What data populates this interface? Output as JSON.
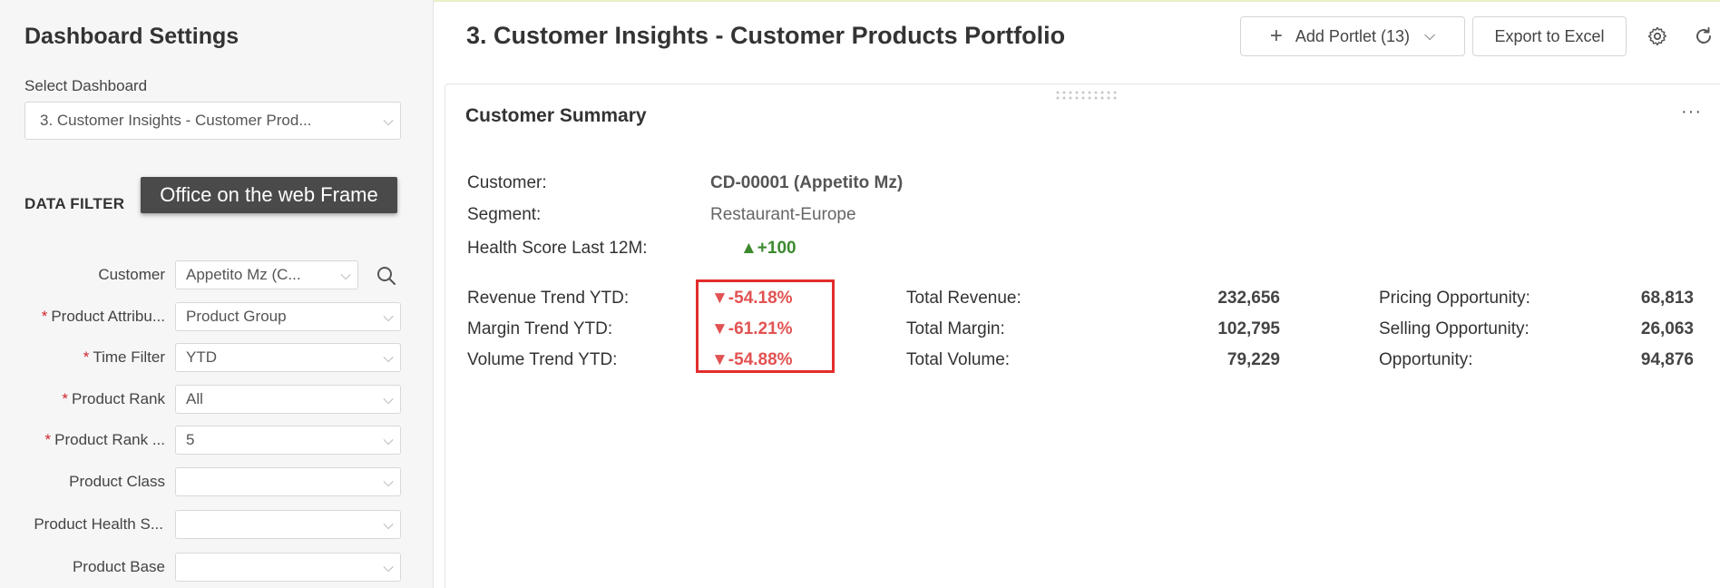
{
  "sidebar": {
    "title": "Dashboard Settings",
    "select_label": "Select Dashboard",
    "dashboard_value": "3. Customer Insights - Customer Prod...",
    "data_filter_label": "DATA FILTER",
    "tooltip": "Office on the web Frame",
    "filters": [
      {
        "label": "Customer",
        "required": false,
        "value": "Appetito Mz (C..."
      },
      {
        "label": "Product Attribu...",
        "required": true,
        "value": "Product Group"
      },
      {
        "label": "Time Filter",
        "required": true,
        "value": "YTD"
      },
      {
        "label": "Product Rank",
        "required": true,
        "value": "All"
      },
      {
        "label": "Product Rank ...",
        "required": true,
        "value": "5"
      },
      {
        "label": "Product Class",
        "required": false,
        "value": ""
      },
      {
        "label": "Product Health S...",
        "required": false,
        "value": ""
      },
      {
        "label": "Product Base",
        "required": false,
        "value": ""
      }
    ],
    "required_mark": "*"
  },
  "header": {
    "title": "3. Customer Insights - Customer Products Portfolio",
    "add_portlet_label": "Add Portlet (13)",
    "export_label": "Export to Excel"
  },
  "portlet": {
    "title": "Customer Summary",
    "more": "···",
    "customer_label": "Customer:",
    "customer_value": "CD-00001 (Appetito Mz)",
    "segment_label": "Segment:",
    "segment_value": "Restaurant-Europe",
    "health_label": "Health Score Last 12M:",
    "health_value": "▲+100",
    "trends": [
      {
        "label": "Revenue Trend YTD:",
        "value": "▼-54.18%"
      },
      {
        "label": "Margin Trend YTD:",
        "value": "▼-61.21%"
      },
      {
        "label": "Volume Trend YTD:",
        "value": "▼-54.88%"
      }
    ],
    "totals": [
      {
        "label": "Total Revenue:",
        "value": "232,656"
      },
      {
        "label": "Total Margin:",
        "value": "102,795"
      },
      {
        "label": "Total Volume:",
        "value": "79,229"
      }
    ],
    "opportunities": [
      {
        "label": "Pricing Opportunity:",
        "value": "68,813"
      },
      {
        "label": "Selling Opportunity:",
        "value": "26,063"
      },
      {
        "label": "Opportunity:",
        "value": "94,876"
      }
    ]
  },
  "colors": {
    "positive": "#3d8a2e",
    "negative": "#e25252",
    "highlight": "#e32d2d"
  }
}
